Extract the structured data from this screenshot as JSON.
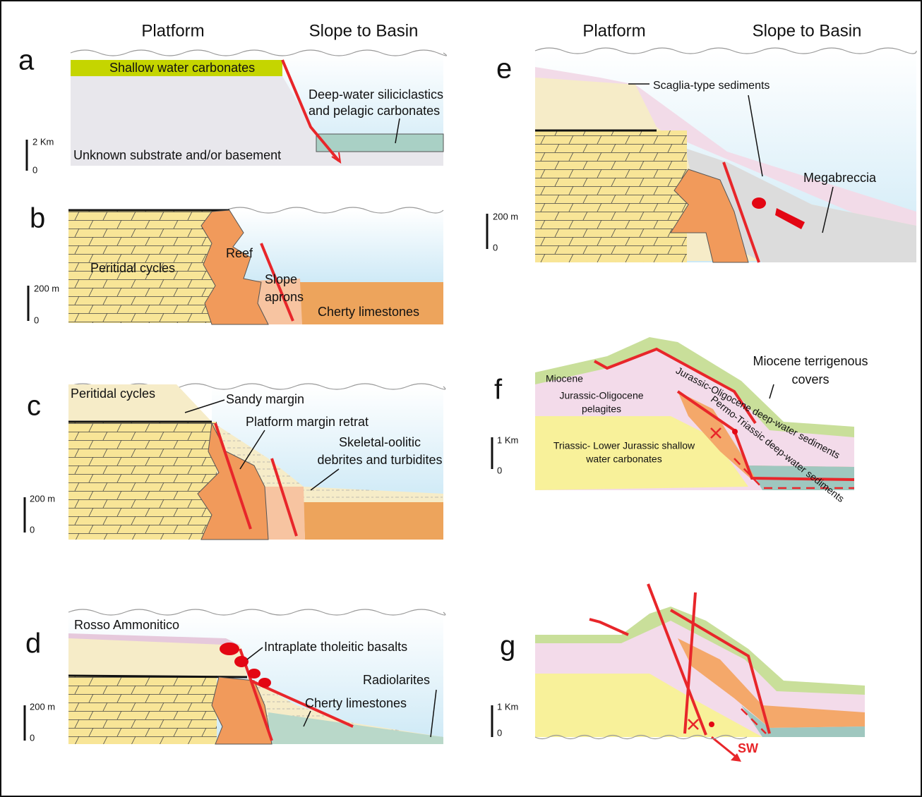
{
  "headers": {
    "left": {
      "platform": "Platform",
      "slope": "Slope to Basin"
    },
    "right": {
      "platform": "Platform",
      "slope": "Slope to Basin"
    }
  },
  "panels": [
    {
      "letter": "a",
      "scale": {
        "top": "2 Km",
        "bottom": "0"
      },
      "labels": [
        "Shallow water carbonates",
        "Deep-water siliciclastics",
        "and pelagic carbonates",
        "Unknown substrate and/or basement"
      ]
    },
    {
      "letter": "b",
      "scale": {
        "top": "200 m",
        "bottom": "0"
      },
      "labels": [
        "Peritidal cycles",
        "Reef",
        "Slope",
        "aprons",
        "Cherty limestones"
      ]
    },
    {
      "letter": "c",
      "scale": {
        "top": "200 m",
        "bottom": "0"
      },
      "labels": [
        "Peritidal cycles",
        "Sandy margin",
        "Platform margin retrat",
        "Skeletal-oolitic",
        "debrites and turbidites"
      ]
    },
    {
      "letter": "d",
      "scale": {
        "top": "200 m",
        "bottom": "0"
      },
      "labels": [
        "Rosso Ammonitico",
        "Intraplate tholeitic basalts",
        "Radiolarites",
        "Cherty limestones"
      ]
    },
    {
      "letter": "e",
      "scale": {
        "top": "200 m",
        "bottom": "0"
      },
      "labels": [
        "Scaglia-type sediments",
        "Megabreccia"
      ]
    },
    {
      "letter": "f",
      "scale": {
        "top": "1 Km",
        "bottom": "0"
      },
      "labels": [
        "Miocene",
        "Jurassic-Oligocene",
        "pelagites",
        "Triassic- Lower Jurassic shallow",
        "water carbonates",
        "Miocene terrigenous",
        "covers",
        "Jurassic-Oligocene deep-water sediments",
        "Permo-Triassic deep-water sediments"
      ]
    },
    {
      "letter": "g",
      "scale": {
        "top": "1 Km",
        "bottom": "0"
      },
      "labels": [
        "SW"
      ]
    }
  ]
}
